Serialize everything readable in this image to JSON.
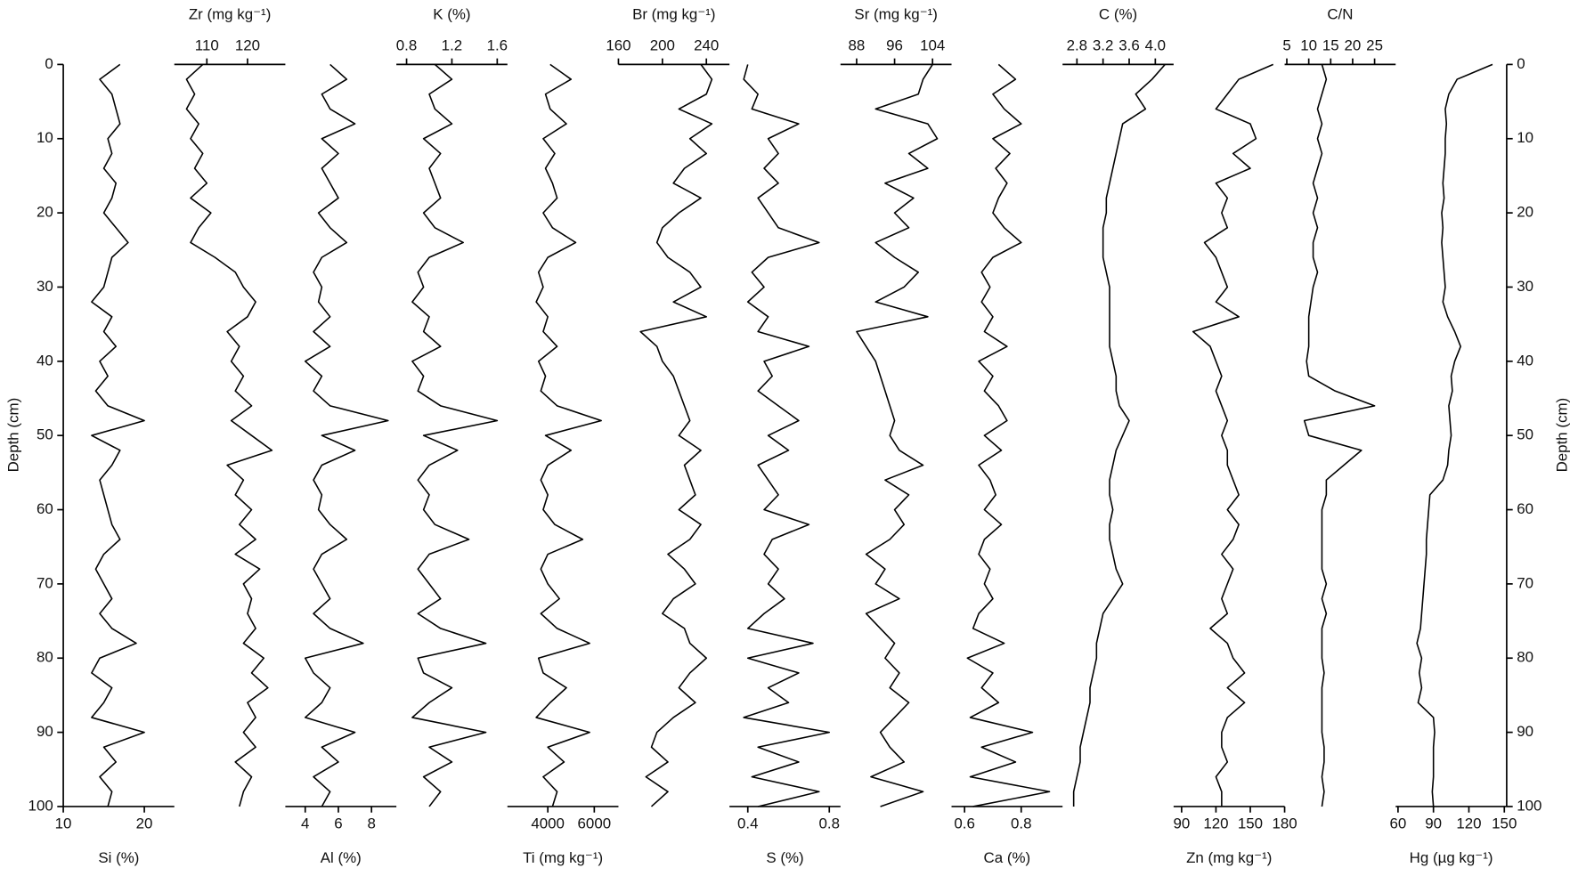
{
  "chart_data": {
    "type": "line",
    "color": "#000000",
    "y_label": "Depth (cm)",
    "y_inverted": true,
    "ylim": [
      0,
      100
    ],
    "yticks": [
      0,
      10,
      20,
      30,
      40,
      50,
      60,
      70,
      80,
      90,
      100
    ],
    "depth": [
      0,
      2,
      4,
      6,
      8,
      10,
      12,
      14,
      16,
      18,
      20,
      22,
      24,
      26,
      28,
      30,
      32,
      34,
      36,
      38,
      40,
      42,
      44,
      46,
      48,
      50,
      52,
      54,
      56,
      58,
      60,
      62,
      64,
      66,
      68,
      70,
      72,
      74,
      76,
      78,
      80,
      82,
      84,
      86,
      88,
      90,
      92,
      94,
      96,
      98,
      100
    ],
    "panels": [
      {
        "name": "Si (%)",
        "axis": "bottom",
        "xlim": [
          10,
          23.7
        ],
        "xticks": [
          10,
          20
        ],
        "values": [
          17,
          14.5,
          16,
          16.5,
          17,
          15.5,
          16,
          15,
          16.5,
          16,
          15,
          16.5,
          18,
          16,
          15.5,
          15,
          13.5,
          16,
          15,
          16.5,
          14.5,
          15.5,
          14,
          15.5,
          20,
          13.5,
          17,
          16,
          14.5,
          15,
          15.5,
          16,
          17,
          15,
          14,
          15,
          16,
          14.5,
          16,
          19,
          14.5,
          13.5,
          16,
          15,
          13.5,
          20,
          15,
          16.5,
          14.5,
          16,
          15.5
        ]
      },
      {
        "name": "Zr (mg kg⁻¹)",
        "axis": "top",
        "xlim": [
          102,
          129.3
        ],
        "xticks": [
          110,
          120
        ],
        "values": [
          109,
          105,
          107,
          105,
          108,
          106,
          109,
          107,
          110,
          106,
          111,
          108,
          106,
          112,
          117,
          119,
          122,
          120,
          115,
          118,
          116,
          119,
          117,
          121,
          116,
          121,
          126,
          115,
          119,
          117,
          121,
          118,
          122,
          117,
          123,
          119,
          121,
          120,
          122,
          119,
          124,
          121,
          125,
          120,
          122,
          119,
          122,
          117,
          121,
          119,
          118
        ]
      },
      {
        "name": "Al (%)",
        "axis": "bottom",
        "xlim": [
          2.8,
          9.5
        ],
        "xticks": [
          4,
          6,
          8
        ],
        "values": [
          5.5,
          6.5,
          5,
          5.5,
          7,
          5,
          6,
          5,
          5.5,
          6,
          4.8,
          5.5,
          6.5,
          5,
          4.5,
          5,
          4.8,
          5.5,
          4.5,
          5.5,
          4,
          5,
          4.5,
          5.5,
          9,
          5,
          7,
          5,
          4.5,
          5,
          4.8,
          5.5,
          6.5,
          5,
          4.5,
          5,
          5.5,
          4.5,
          5.5,
          7.5,
          4,
          4.5,
          5.5,
          5,
          4,
          7,
          5,
          6,
          4.5,
          5.5,
          5
        ]
      },
      {
        "name": "K (%)",
        "axis": "top",
        "xlim": [
          0.71,
          1.69
        ],
        "xticks": [
          0.8,
          1.2,
          1.6
        ],
        "values": [
          1.05,
          1.2,
          1.0,
          1.05,
          1.2,
          0.95,
          1.1,
          1.0,
          1.05,
          1.1,
          0.95,
          1.05,
          1.3,
          1.0,
          0.9,
          0.95,
          0.85,
          1.0,
          0.95,
          1.1,
          0.85,
          0.95,
          0.9,
          1.1,
          1.6,
          0.95,
          1.25,
          1.0,
          0.9,
          1.0,
          0.95,
          1.05,
          1.35,
          1.0,
          0.9,
          1.0,
          1.1,
          0.9,
          1.1,
          1.5,
          0.9,
          0.95,
          1.2,
          1.0,
          0.85,
          1.5,
          1.0,
          1.2,
          0.95,
          1.1,
          1.0
        ]
      },
      {
        "name": "Ti (mg kg⁻¹)",
        "axis": "bottom",
        "xlim": [
          2260,
          7040
        ],
        "xticks": [
          4000,
          6000
        ],
        "values": [
          4100,
          5000,
          3900,
          4100,
          4800,
          3800,
          4300,
          3900,
          4200,
          4400,
          3800,
          4200,
          5200,
          4000,
          3600,
          3800,
          3500,
          4000,
          3800,
          4400,
          3600,
          3900,
          3700,
          4400,
          6300,
          3900,
          5000,
          4000,
          3700,
          4000,
          3800,
          4300,
          5500,
          4000,
          3700,
          4000,
          4500,
          3700,
          4400,
          5800,
          3600,
          3800,
          4800,
          4100,
          3500,
          5800,
          4000,
          4700,
          3800,
          4400,
          4200
        ]
      },
      {
        "name": "Br (mg kg⁻¹)",
        "axis": "top",
        "xlim": [
          160,
          261
        ],
        "xticks": [
          160,
          200,
          240
        ],
        "values": [
          235,
          245,
          240,
          215,
          245,
          225,
          240,
          220,
          210,
          235,
          215,
          200,
          195,
          205,
          225,
          235,
          210,
          240,
          180,
          195,
          200,
          210,
          215,
          220,
          225,
          215,
          235,
          220,
          225,
          230,
          215,
          235,
          225,
          205,
          220,
          230,
          210,
          200,
          220,
          225,
          240,
          225,
          215,
          230,
          210,
          195,
          190,
          205,
          185,
          205,
          190
        ]
      },
      {
        "name": "S (%)",
        "axis": "bottom",
        "xlim": [
          0.31,
          0.855
        ],
        "xticks": [
          0.4,
          0.8
        ],
        "values": [
          0.4,
          0.38,
          0.45,
          0.42,
          0.65,
          0.5,
          0.55,
          0.48,
          0.55,
          0.45,
          0.5,
          0.55,
          0.75,
          0.5,
          0.42,
          0.48,
          0.4,
          0.5,
          0.45,
          0.7,
          0.48,
          0.52,
          0.45,
          0.55,
          0.65,
          0.5,
          0.6,
          0.45,
          0.5,
          0.55,
          0.48,
          0.7,
          0.52,
          0.48,
          0.55,
          0.5,
          0.58,
          0.48,
          0.4,
          0.72,
          0.4,
          0.65,
          0.5,
          0.6,
          0.38,
          0.8,
          0.45,
          0.65,
          0.42,
          0.75,
          0.45
        ]
      },
      {
        "name": "Sr (mg kg⁻¹)",
        "axis": "top",
        "xlim": [
          84.6,
          108
        ],
        "xticks": [
          88,
          96,
          104
        ],
        "values": [
          104,
          102,
          101,
          92,
          103,
          105,
          99,
          103,
          94,
          100,
          96,
          99,
          92,
          96,
          101,
          98,
          92,
          103,
          88,
          90,
          92,
          93,
          94,
          95,
          96,
          95,
          97,
          102,
          94,
          99,
          96,
          98,
          95,
          90,
          94,
          92,
          97,
          90,
          93,
          96,
          94,
          97,
          95,
          99,
          96,
          93,
          95,
          98,
          91,
          102,
          93
        ]
      },
      {
        "name": "Ca (%)",
        "axis": "bottom",
        "xlim": [
          0.554,
          0.946
        ],
        "xticks": [
          0.6,
          0.8
        ],
        "values": [
          0.72,
          0.78,
          0.7,
          0.74,
          0.8,
          0.7,
          0.76,
          0.71,
          0.75,
          0.72,
          0.7,
          0.74,
          0.8,
          0.7,
          0.66,
          0.69,
          0.66,
          0.7,
          0.67,
          0.75,
          0.65,
          0.7,
          0.67,
          0.72,
          0.75,
          0.67,
          0.73,
          0.65,
          0.69,
          0.71,
          0.67,
          0.73,
          0.67,
          0.65,
          0.69,
          0.67,
          0.7,
          0.65,
          0.63,
          0.74,
          0.61,
          0.7,
          0.66,
          0.72,
          0.62,
          0.84,
          0.66,
          0.78,
          0.62,
          0.9,
          0.63
        ]
      },
      {
        "name": "C (%)",
        "axis": "top",
        "xlim": [
          2.58,
          4.28
        ],
        "xticks": [
          2.8,
          3.2,
          3.6,
          {
            "value": 4,
            "label": "4.0"
          }
        ],
        "values": [
          4.15,
          3.95,
          3.7,
          3.85,
          3.5,
          3.45,
          3.4,
          3.35,
          3.3,
          3.25,
          3.25,
          3.2,
          3.2,
          3.2,
          3.25,
          3.3,
          3.3,
          3.3,
          3.3,
          3.3,
          3.35,
          3.4,
          3.4,
          3.45,
          3.6,
          3.5,
          3.4,
          3.35,
          3.3,
          3.3,
          3.35,
          3.3,
          3.3,
          3.35,
          3.4,
          3.5,
          3.35,
          3.2,
          3.15,
          3.1,
          3.1,
          3.05,
          3.0,
          3.0,
          2.95,
          2.9,
          2.85,
          2.85,
          2.8,
          2.75,
          2.75
        ]
      },
      {
        "name": "Zn (mg kg⁻¹)",
        "axis": "bottom",
        "xlim": [
          83,
          180
        ],
        "xticks": [
          90,
          120,
          150,
          180
        ],
        "values": [
          170,
          140,
          130,
          120,
          150,
          155,
          135,
          150,
          120,
          130,
          125,
          130,
          110,
          120,
          125,
          130,
          120,
          140,
          100,
          115,
          120,
          125,
          120,
          125,
          130,
          125,
          130,
          130,
          135,
          140,
          130,
          140,
          135,
          125,
          135,
          130,
          125,
          130,
          115,
          130,
          135,
          145,
          130,
          145,
          130,
          125,
          125,
          130,
          120,
          125,
          125
        ]
      },
      {
        "name": "C/N",
        "axis": "top",
        "xlim": [
          4.5,
          29.8
        ],
        "xticks": [
          5,
          10,
          15,
          20,
          25
        ],
        "values": [
          13,
          14,
          13,
          12,
          13,
          12,
          13,
          12,
          11,
          12,
          11,
          12,
          11,
          11,
          12,
          11,
          10.5,
          10,
          10,
          10,
          9.5,
          10,
          16,
          25,
          9,
          10,
          22,
          18,
          14,
          14,
          13,
          13,
          13,
          13,
          13,
          14,
          13,
          14,
          13,
          13,
          13,
          13.5,
          13,
          13,
          13,
          13,
          13.5,
          13.5,
          13,
          13.5,
          13
        ]
      },
      {
        "name": "Hg (µg kg⁻¹)",
        "axis": "bottom",
        "xlim": [
          58,
          152
        ],
        "xticks": [
          60,
          90,
          120,
          150
        ],
        "values": [
          140,
          110,
          103,
          100,
          101,
          100,
          100,
          99,
          98,
          99,
          97,
          98,
          97,
          98,
          99,
          100,
          98,
          102,
          108,
          113,
          108,
          105,
          106,
          103,
          104,
          105,
          103,
          102,
          98,
          87,
          86,
          85,
          84,
          84,
          83,
          82,
          81,
          80,
          79,
          76,
          80,
          78,
          80,
          77,
          90,
          91,
          90,
          90,
          90,
          89,
          90
        ]
      }
    ]
  }
}
